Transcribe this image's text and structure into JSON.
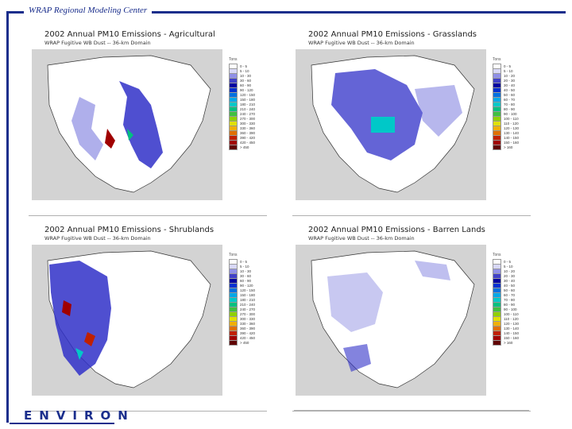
{
  "header": {
    "label": "WRAP Regional Modeling Center"
  },
  "legend_a": {
    "unit": "Tons",
    "items": [
      {
        "label": "0 - 5",
        "color": "#ffffff"
      },
      {
        "label": "5 - 10",
        "color": "#d8d8f8"
      },
      {
        "label": "10 - 30",
        "color": "#9090e8"
      },
      {
        "label": "30 - 60",
        "color": "#4040c8"
      },
      {
        "label": "60 - 90",
        "color": "#0000a0"
      },
      {
        "label": "90 - 120",
        "color": "#0030d0"
      },
      {
        "label": "120 - 150",
        "color": "#0070e0"
      },
      {
        "label": "150 - 180",
        "color": "#00a8e8"
      },
      {
        "label": "180 - 210",
        "color": "#00c8c8"
      },
      {
        "label": "210 - 240",
        "color": "#00c080"
      },
      {
        "label": "240 - 270",
        "color": "#40c040"
      },
      {
        "label": "270 - 300",
        "color": "#90d000"
      },
      {
        "label": "300 - 330",
        "color": "#e0e000"
      },
      {
        "label": "330 - 360",
        "color": "#f0b000"
      },
      {
        "label": "360 - 390",
        "color": "#e07000"
      },
      {
        "label": "390 - 420",
        "color": "#c02000"
      },
      {
        "label": "420 - 450",
        "color": "#a00000"
      },
      {
        "label": "> 450",
        "color": "#600000"
      }
    ]
  },
  "legend_b": {
    "unit": "Tons",
    "items": [
      {
        "label": "0 - 5",
        "color": "#ffffff"
      },
      {
        "label": "5 - 10",
        "color": "#d8d8f8"
      },
      {
        "label": "10 - 20",
        "color": "#9090e8"
      },
      {
        "label": "20 - 30",
        "color": "#4040c8"
      },
      {
        "label": "30 - 40",
        "color": "#0000a0"
      },
      {
        "label": "40 - 50",
        "color": "#0030d0"
      },
      {
        "label": "50 - 60",
        "color": "#0070e0"
      },
      {
        "label": "60 - 70",
        "color": "#00a8e8"
      },
      {
        "label": "70 - 80",
        "color": "#00c8c8"
      },
      {
        "label": "80 - 90",
        "color": "#00c080"
      },
      {
        "label": "90 - 100",
        "color": "#40c040"
      },
      {
        "label": "100 - 110",
        "color": "#90d000"
      },
      {
        "label": "110 - 120",
        "color": "#e0e000"
      },
      {
        "label": "120 - 130",
        "color": "#f0b000"
      },
      {
        "label": "130 - 140",
        "color": "#e07000"
      },
      {
        "label": "140 - 150",
        "color": "#c02000"
      },
      {
        "label": "150 - 160",
        "color": "#a00000"
      },
      {
        "label": "> 160",
        "color": "#600000"
      }
    ]
  },
  "panels": [
    {
      "title": "2002 Annual PM10 Emissions  - Agricultural",
      "subtitle": "WRAP Fugitive WB Dust -- 36-km Domain"
    },
    {
      "title": "2002 Annual PM10 Emissions  - Grasslands",
      "subtitle": "WRAP Fugitive WB Dust -- 36-km Domain"
    },
    {
      "title": "2002 Annual PM10 Emissions  - Shrublands",
      "subtitle": "WRAP Fugitive WB Dust -- 36-km Domain"
    },
    {
      "title": "2002 Annual PM10 Emissions  - Barren Lands",
      "subtitle": "WRAP Fugitive WB Dust -- 36-km Domain"
    }
  ],
  "footer": {
    "logo": "ENVIRON"
  }
}
